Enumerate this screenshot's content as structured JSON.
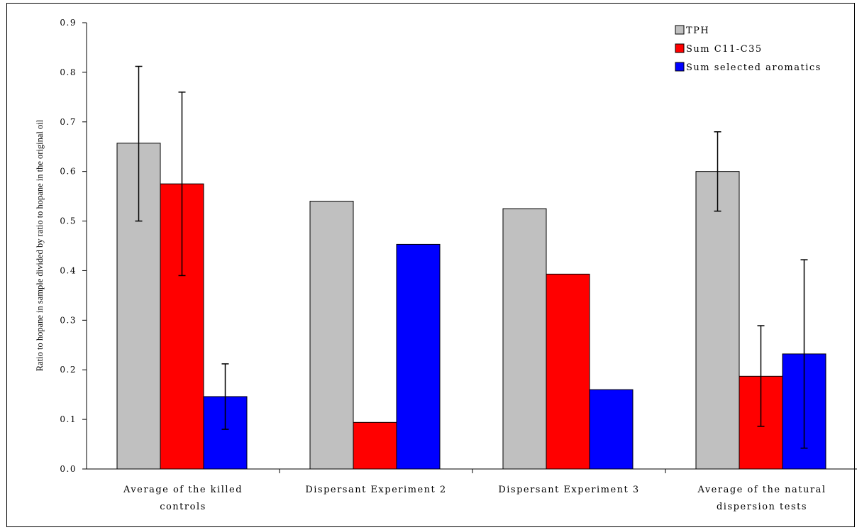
{
  "chart_data": {
    "type": "bar",
    "title": "",
    "xlabel": "",
    "ylabel": "Ratio to hopane in sample divided by ratio to hopane in the original oil",
    "ylim": [
      0,
      0.9
    ],
    "yticks": [
      "0.0",
      "0.1",
      "0.2",
      "0.3",
      "0.4",
      "0.5",
      "0.6",
      "0.7",
      "0.8",
      "0.9"
    ],
    "grid": false,
    "legend_position": "top-right",
    "categories": [
      [
        "Average of the killed",
        "controls"
      ],
      [
        "Dispersant Experiment 2"
      ],
      [
        "Dispersant Experiment 3"
      ],
      [
        "Average of the natural",
        "dispersion tests"
      ]
    ],
    "series": [
      {
        "name": "TPH",
        "color": "#c0c0c0",
        "values": [
          0.657,
          0.54,
          0.525,
          0.6
        ],
        "error_low": [
          0.5,
          null,
          null,
          0.52
        ],
        "error_high": [
          0.812,
          null,
          null,
          0.68
        ]
      },
      {
        "name": "Sum C11-C35",
        "color": "#ff0000",
        "values": [
          0.575,
          0.094,
          0.393,
          0.187
        ],
        "error_low": [
          0.39,
          null,
          null,
          0.086
        ],
        "error_high": [
          0.76,
          null,
          null,
          0.289
        ]
      },
      {
        "name": "Sum selected aromatics",
        "color": "#0000ff",
        "values": [
          0.146,
          0.453,
          0.16,
          0.232
        ],
        "error_low": [
          0.08,
          null,
          null,
          0.042
        ],
        "error_high": [
          0.212,
          null,
          null,
          0.422
        ]
      }
    ]
  }
}
